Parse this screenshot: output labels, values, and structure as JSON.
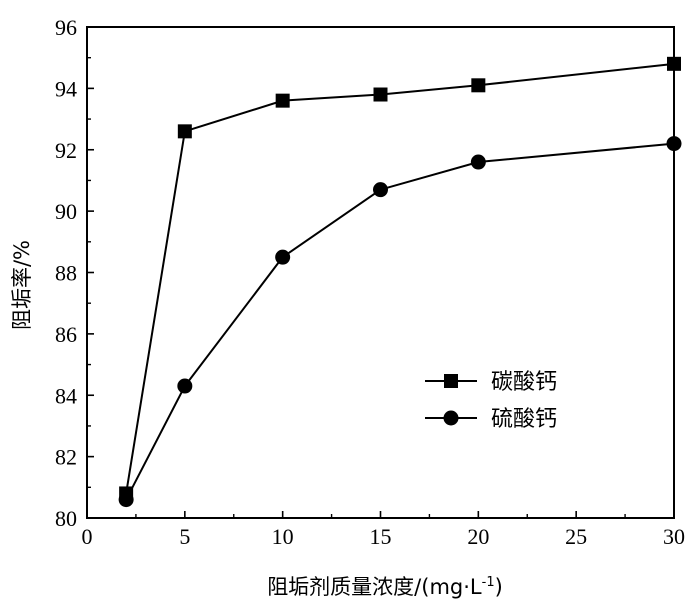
{
  "chart_data": {
    "type": "line",
    "xlabel": "阻垢剂质量浓度/(mg·L",
    "xlabel_sup": "-1",
    "xlabel_close": ")",
    "ylabel": "阻垢率/%",
    "xlim": [
      0,
      30
    ],
    "ylim": [
      80,
      96
    ],
    "xticks": [
      0,
      5,
      10,
      15,
      20,
      25,
      30
    ],
    "yticks": [
      80,
      82,
      84,
      86,
      88,
      90,
      92,
      94,
      96
    ],
    "grid": false,
    "legend_position": "center-right",
    "series": [
      {
        "name": "碳酸钙",
        "marker": "square",
        "x": [
          2,
          5,
          10,
          15,
          20,
          30
        ],
        "values": [
          80.8,
          92.6,
          93.6,
          93.8,
          94.1,
          94.8
        ]
      },
      {
        "name": "硫酸钙",
        "marker": "circle",
        "x": [
          2,
          5,
          10,
          15,
          20,
          30
        ],
        "values": [
          80.6,
          84.3,
          88.5,
          90.7,
          91.6,
          92.2
        ]
      }
    ]
  }
}
